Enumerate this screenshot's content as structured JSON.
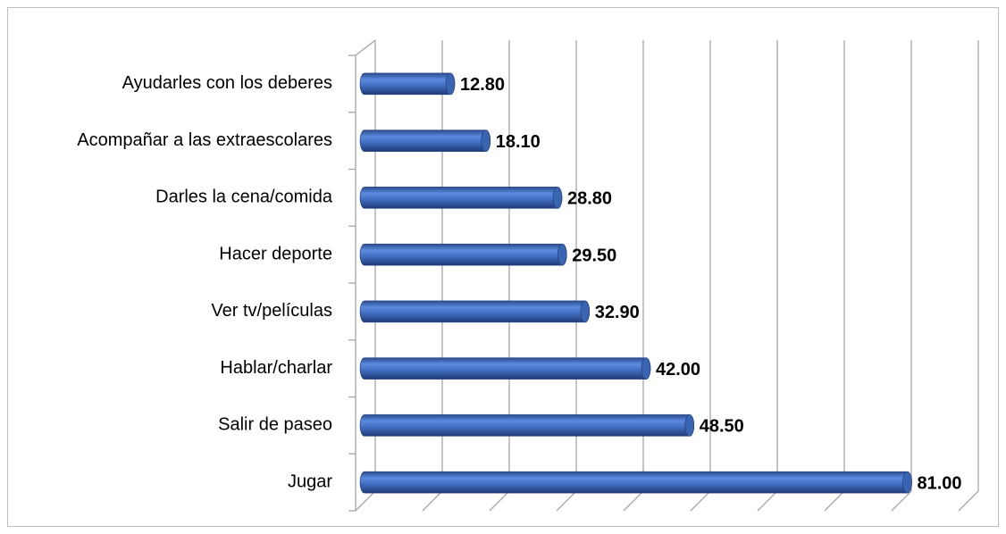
{
  "chart_data": {
    "type": "bar",
    "orientation": "horizontal",
    "categories": [
      "Ayudarles con los deberes",
      "Acompañar a las extraescolares",
      "Darles la cena/comida",
      "Hacer deporte",
      "Ver tv/películas",
      "Hablar/charlar",
      "Salir de paseo",
      "Jugar"
    ],
    "values": [
      12.8,
      18.1,
      28.8,
      29.5,
      32.9,
      42,
      48.5,
      81
    ],
    "value_labels": [
      "12.80",
      "18.10",
      "28.80",
      "29.50",
      "32.90",
      "42.00",
      "48.50",
      "81.00"
    ],
    "color": "#4472c4",
    "xlim": [
      0,
      90
    ],
    "xticks": [
      0,
      10,
      20,
      30,
      40,
      50,
      60,
      70,
      80,
      90
    ],
    "grid": true
  }
}
